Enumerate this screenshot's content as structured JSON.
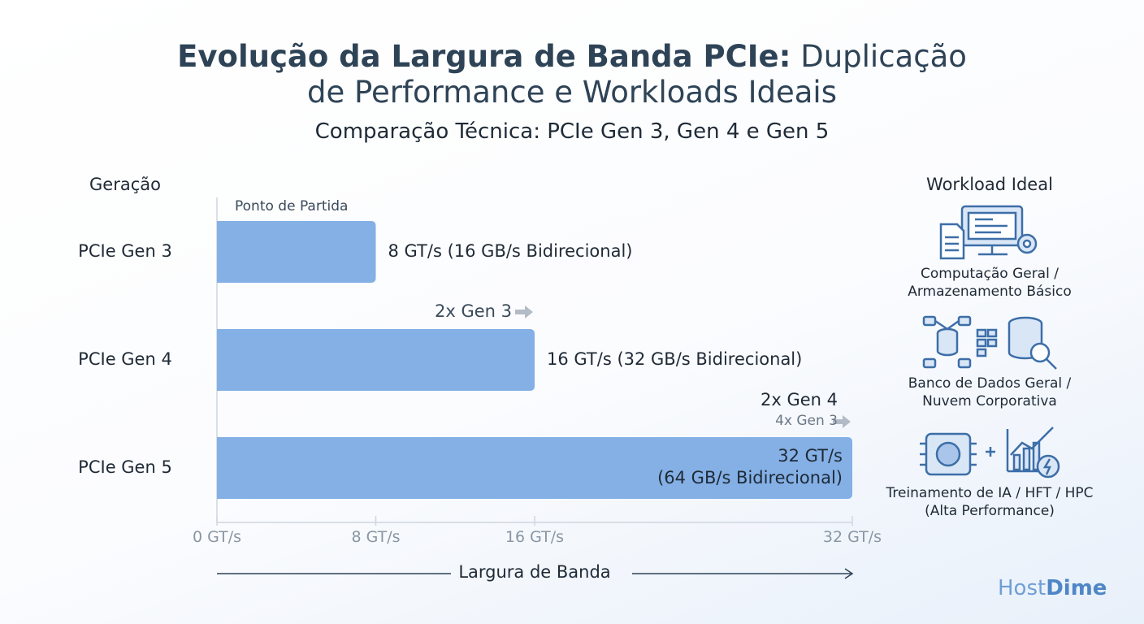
{
  "chart_data": {
    "type": "bar",
    "orientation": "horizontal",
    "title": [
      "Evolução da Largura de Banda PCIe:",
      "Duplicação de Performance e Workloads Ideais"
    ],
    "subtitle": "Comparação Técnica: PCIe Gen 3, Gen 4 e Gen 5",
    "y_label": "Geração",
    "x_label": "Largura de Banda",
    "categories": [
      "PCIe Gen 3",
      "PCIe Gen 4",
      "PCIe Gen 5"
    ],
    "values": [
      8,
      16,
      32
    ],
    "value_labels": [
      "8 GT/s (16 GB/s Bidirecional)",
      "16 GT/s (32 GB/s Bidirecional)",
      "32 GT/s\n(64 GB/s Bidirecional)"
    ],
    "color": "#84b0e6",
    "xlim": [
      0,
      32
    ],
    "xticks": [
      {
        "value": 0,
        "label": "0 GT/s"
      },
      {
        "value": 8,
        "label": "8 GT/s"
      },
      {
        "value": 16,
        "label": "16 GT/s"
      },
      {
        "value": 32,
        "label": "32 GT/s"
      }
    ],
    "annotations": [
      "Ponto de Partida",
      "2x Gen 3",
      "2x Gen 4",
      "4x Gen 3"
    ],
    "workload_title": "Workload Ideal",
    "workloads": [
      "Computação Geral /\nArmazenamento Básico",
      "Banco de Dados Geral /\nNuvem Corporativa",
      "Treinamento de IA / HFT / HPC\n(Alta Performance)"
    ],
    "brand": [
      "Host",
      "Dime"
    ]
  }
}
